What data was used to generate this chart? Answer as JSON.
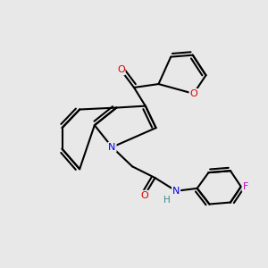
{
  "bg": "#e8e8e8",
  "bond_color": "#000000",
  "bond_lw": 1.5,
  "atom_colors": {
    "O": "#dd0000",
    "N": "#0000ee",
    "F": "#bb00bb",
    "H": "#3a8a8a",
    "C": "#000000"
  },
  "xlim": [
    0,
    3
  ],
  "ylim": [
    0,
    3
  ],
  "figsize": [
    3.0,
    3.0
  ],
  "dpi": 100
}
